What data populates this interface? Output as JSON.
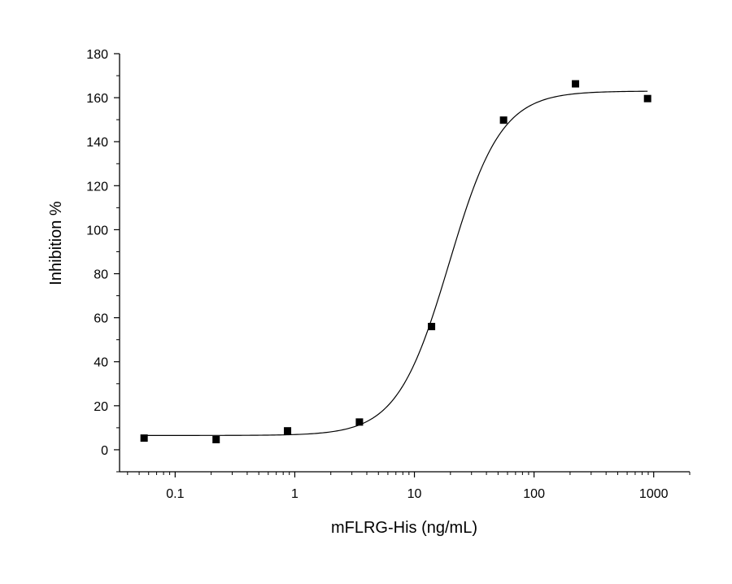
{
  "chart_data": {
    "type": "scatter",
    "title": "",
    "xlabel": "mFLRG-His  (ng/mL)",
    "ylabel": "Inhibition %",
    "x_scale": "log",
    "xlim": [
      0.0343,
      2000
    ],
    "ylim": [
      -10,
      180
    ],
    "x_ticks": [
      0.1,
      1,
      10,
      100,
      1000
    ],
    "x_tick_labels": [
      "0.1",
      "1",
      "10",
      "100",
      "1000"
    ],
    "y_ticks": [
      0,
      20,
      40,
      60,
      80,
      100,
      120,
      140,
      160,
      180
    ],
    "y_tick_labels": [
      "0",
      "20",
      "40",
      "60",
      "80",
      "100",
      "120",
      "140",
      "160",
      "180"
    ],
    "grid": false,
    "legend": "none",
    "series": [
      {
        "type": "scatter",
        "marker": "square",
        "color": "#000000",
        "x": [
          0.055,
          0.22,
          0.87,
          3.47,
          13.9,
          55.6,
          222,
          889
        ],
        "y": [
          5.3,
          4.6,
          8.6,
          12.6,
          56.0,
          149.8,
          166.3,
          159.6
        ]
      },
      {
        "type": "line",
        "role": "4-parameter logistic fit",
        "color": "#000000",
        "bottom": 6.5,
        "top": 163,
        "ec50": 19.5,
        "hill": 2.0,
        "x_range": [
          0.055,
          889
        ]
      }
    ]
  }
}
